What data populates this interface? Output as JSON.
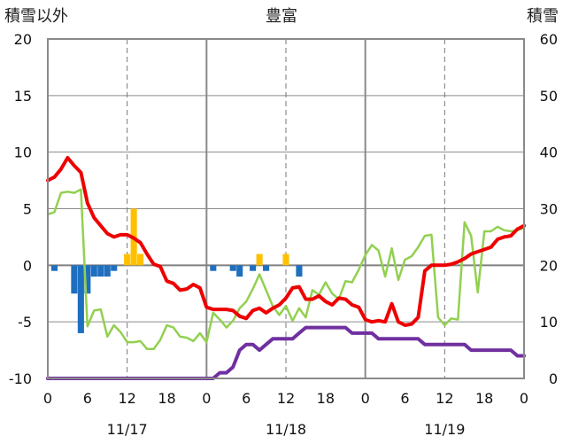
{
  "chart_data": {
    "type": "line",
    "title": "豊富",
    "ylabel_left": "積雪以外",
    "ylabel_right": "積雪",
    "ylim_left": [
      -10,
      20
    ],
    "ylim_right": [
      0,
      60
    ],
    "yticks_left": [
      "-10",
      "-5",
      "0",
      "5",
      "10",
      "15",
      "20"
    ],
    "yticks_right": [
      "0",
      "10",
      "20",
      "30",
      "40",
      "50",
      "60"
    ],
    "xlim_hours": [
      0,
      72
    ],
    "xticks": [
      "0",
      "6",
      "12",
      "18",
      "0",
      "6",
      "12",
      "18",
      "0",
      "6",
      "12",
      "18",
      "0"
    ],
    "date_labels": [
      "11/17",
      "11/18",
      "11/19"
    ],
    "grid": true,
    "colors": {
      "temperature": "#ee0000",
      "wind": "#92d050",
      "snow_depth": "#7030a0",
      "precip": "#ffc000",
      "precip_negative": "#1f6fbf"
    },
    "series": [
      {
        "key": "temperature",
        "values": [
          7.5,
          7.8,
          8.5,
          9.5,
          8.8,
          8.2,
          5.5,
          4.2,
          3.5,
          2.8,
          2.5,
          2.7,
          2.7,
          2.4,
          2.0,
          1.0,
          0.1,
          -0.1,
          -1.4,
          -1.6,
          -2.2,
          -2.1,
          -1.7,
          -2.0,
          -3.7,
          -3.9,
          -3.9,
          -3.9,
          -4.0,
          -4.5,
          -4.7,
          -4.0,
          -3.8,
          -4.2,
          -3.8,
          -3.5,
          -2.9,
          -2.0,
          -1.9,
          -3.0,
          -3.0,
          -2.7,
          -3.2,
          -3.5,
          -2.9,
          -3.0,
          -3.5,
          -3.7,
          -4.8,
          -5.0,
          -4.9,
          -5.0,
          -3.4,
          -5.0,
          -5.3,
          -5.2,
          -4.6,
          -0.5,
          0.0,
          0.0,
          0.0,
          0.1,
          0.3,
          0.6,
          1.0,
          1.2,
          1.4,
          1.6,
          2.3,
          2.5,
          2.6,
          3.2,
          3.5
        ]
      },
      {
        "key": "wind",
        "values": [
          4.5,
          4.7,
          6.4,
          6.5,
          6.4,
          6.7,
          -5.4,
          -4.0,
          -3.9,
          -6.3,
          -5.3,
          -5.9,
          -6.8,
          -6.8,
          -6.7,
          -7.4,
          -7.4,
          -6.6,
          -5.3,
          -5.5,
          -6.3,
          -6.4,
          -6.7,
          -6.0,
          -6.8,
          -4.2,
          -4.8,
          -5.5,
          -4.9,
          -3.8,
          -3.2,
          -2.1,
          -0.8,
          -2.2,
          -3.6,
          -4.4,
          -3.6,
          -4.9,
          -3.8,
          -4.6,
          -2.2,
          -2.6,
          -1.5,
          -2.5,
          -3.0,
          -1.4,
          -1.5,
          -0.4,
          0.9,
          1.8,
          1.3,
          -1.0,
          1.5,
          -1.3,
          0.5,
          0.8,
          1.6,
          2.6,
          2.7,
          -4.6,
          -5.3,
          -4.7,
          -4.8,
          3.8,
          2.6,
          -2.4,
          3.0,
          3.0,
          3.4,
          3.1,
          3.0,
          3.1,
          3.3
        ]
      },
      {
        "key": "snow_depth",
        "values": [
          0,
          0,
          0,
          0,
          0,
          0,
          0,
          0,
          0,
          0,
          0,
          0,
          0,
          0,
          0,
          0,
          0,
          0,
          0,
          0,
          0,
          0,
          0,
          0,
          0,
          0,
          1,
          1,
          2,
          5,
          6,
          6,
          5,
          6,
          7,
          7,
          7,
          7,
          8,
          9,
          9,
          9,
          9,
          9,
          9,
          9,
          8,
          8,
          8,
          8,
          7,
          7,
          7,
          7,
          7,
          7,
          7,
          6,
          6,
          6,
          6,
          6,
          6,
          6,
          5,
          5,
          5,
          5,
          5,
          5,
          5,
          4,
          4
        ]
      },
      {
        "key": "precip",
        "hours": [
          12,
          13,
          14,
          32,
          36
        ],
        "values": [
          1.0,
          5.0,
          1.0,
          1.0,
          1.0
        ]
      },
      {
        "key": "precip_negative",
        "hours": [
          1,
          4,
          5,
          6,
          7,
          8,
          9,
          10,
          25,
          28,
          29,
          31,
          33,
          38
        ],
        "values": [
          -0.5,
          -2.5,
          -6.0,
          -2.5,
          -1.0,
          -1.0,
          -1.0,
          -0.5,
          -0.5,
          -0.5,
          -1.0,
          -0.5,
          -0.5,
          -1.0
        ]
      }
    ]
  }
}
